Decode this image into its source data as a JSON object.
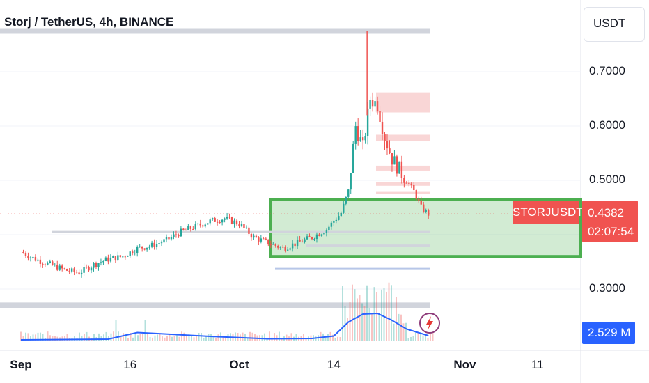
{
  "header": {
    "title": "Storj / TetherUS, 4h, BINANCE",
    "currency": "USDT"
  },
  "price_tag": {
    "symbol": "STORJUSDT",
    "price": "0.4382",
    "countdown": "02:07:54"
  },
  "volume_tag": {
    "value": "2.529 M"
  },
  "icons": {
    "alert": "lightning-bolt-icon"
  },
  "colors": {
    "up": "#26a69a",
    "down": "#ef5350",
    "zone_green": "#4caf50",
    "zone_red": "#f8cfcf",
    "volume_ma": "#2962ff"
  },
  "chart_data": {
    "type": "candlestick",
    "title": "Storj / TetherUS, 4h, BINANCE",
    "xlabel": "",
    "ylabel": "",
    "ylim": [
      0.24,
      0.82
    ],
    "y_ticks": [
      "0.7000",
      "0.6000",
      "0.5000",
      "0.3000"
    ],
    "x_ticks": [
      "Sep",
      "16",
      "Oct",
      "14",
      "Nov",
      "11"
    ],
    "grid": true,
    "legend": "none",
    "price_series": {
      "x": [
        "2024-09-01",
        "2024-09-03",
        "2024-09-05",
        "2024-09-07",
        "2024-09-09",
        "2024-09-11",
        "2024-09-13",
        "2024-09-15",
        "2024-09-17",
        "2024-09-19",
        "2024-09-21",
        "2024-09-23",
        "2024-09-25",
        "2024-09-27",
        "2024-09-29",
        "2024-10-01",
        "2024-10-03",
        "2024-10-05",
        "2024-10-07",
        "2024-10-09",
        "2024-10-11",
        "2024-10-13",
        "2024-10-15",
        "2024-10-16",
        "2024-10-17",
        "2024-10-18",
        "2024-10-19",
        "2024-10-20",
        "2024-10-21",
        "2024-10-22",
        "2024-10-23",
        "2024-10-24",
        "2024-10-25",
        "2024-10-26",
        "2024-10-27"
      ],
      "close": [
        0.368,
        0.355,
        0.345,
        0.335,
        0.33,
        0.345,
        0.355,
        0.36,
        0.375,
        0.38,
        0.39,
        0.405,
        0.415,
        0.425,
        0.43,
        0.42,
        0.395,
        0.385,
        0.375,
        0.385,
        0.395,
        0.41,
        0.44,
        0.48,
        0.6,
        0.56,
        0.65,
        0.64,
        0.58,
        0.54,
        0.52,
        0.5,
        0.48,
        0.45,
        0.438
      ]
    },
    "volume_series": {
      "x": [
        "2024-09-01",
        "2024-09-13",
        "2024-09-17",
        "2024-09-27",
        "2024-10-05",
        "2024-10-11",
        "2024-10-14",
        "2024-10-16",
        "2024-10-18",
        "2024-10-20",
        "2024-10-22",
        "2024-10-24",
        "2024-10-27"
      ],
      "volume_ma_millions": [
        0.4,
        0.6,
        2.5,
        1.4,
        0.7,
        0.8,
        1.5,
        5.5,
        7.8,
        8.0,
        6.0,
        3.5,
        1.6
      ]
    },
    "zones": [
      {
        "type": "demand",
        "ymin": 0.36,
        "ymax": 0.465
      },
      {
        "type": "supply",
        "ymin": 0.625,
        "ymax": 0.662
      },
      {
        "type": "supply",
        "ymin": 0.573,
        "ymax": 0.584
      },
      {
        "type": "supply",
        "ymin": 0.518,
        "ymax": 0.527
      },
      {
        "type": "supply",
        "ymin": 0.49,
        "ymax": 0.497
      },
      {
        "type": "supply",
        "ymin": 0.475,
        "ymax": 0.48
      }
    ],
    "levels": [
      0.775,
      0.405,
      0.38,
      0.337,
      0.27
    ],
    "last_price": 0.4382
  }
}
